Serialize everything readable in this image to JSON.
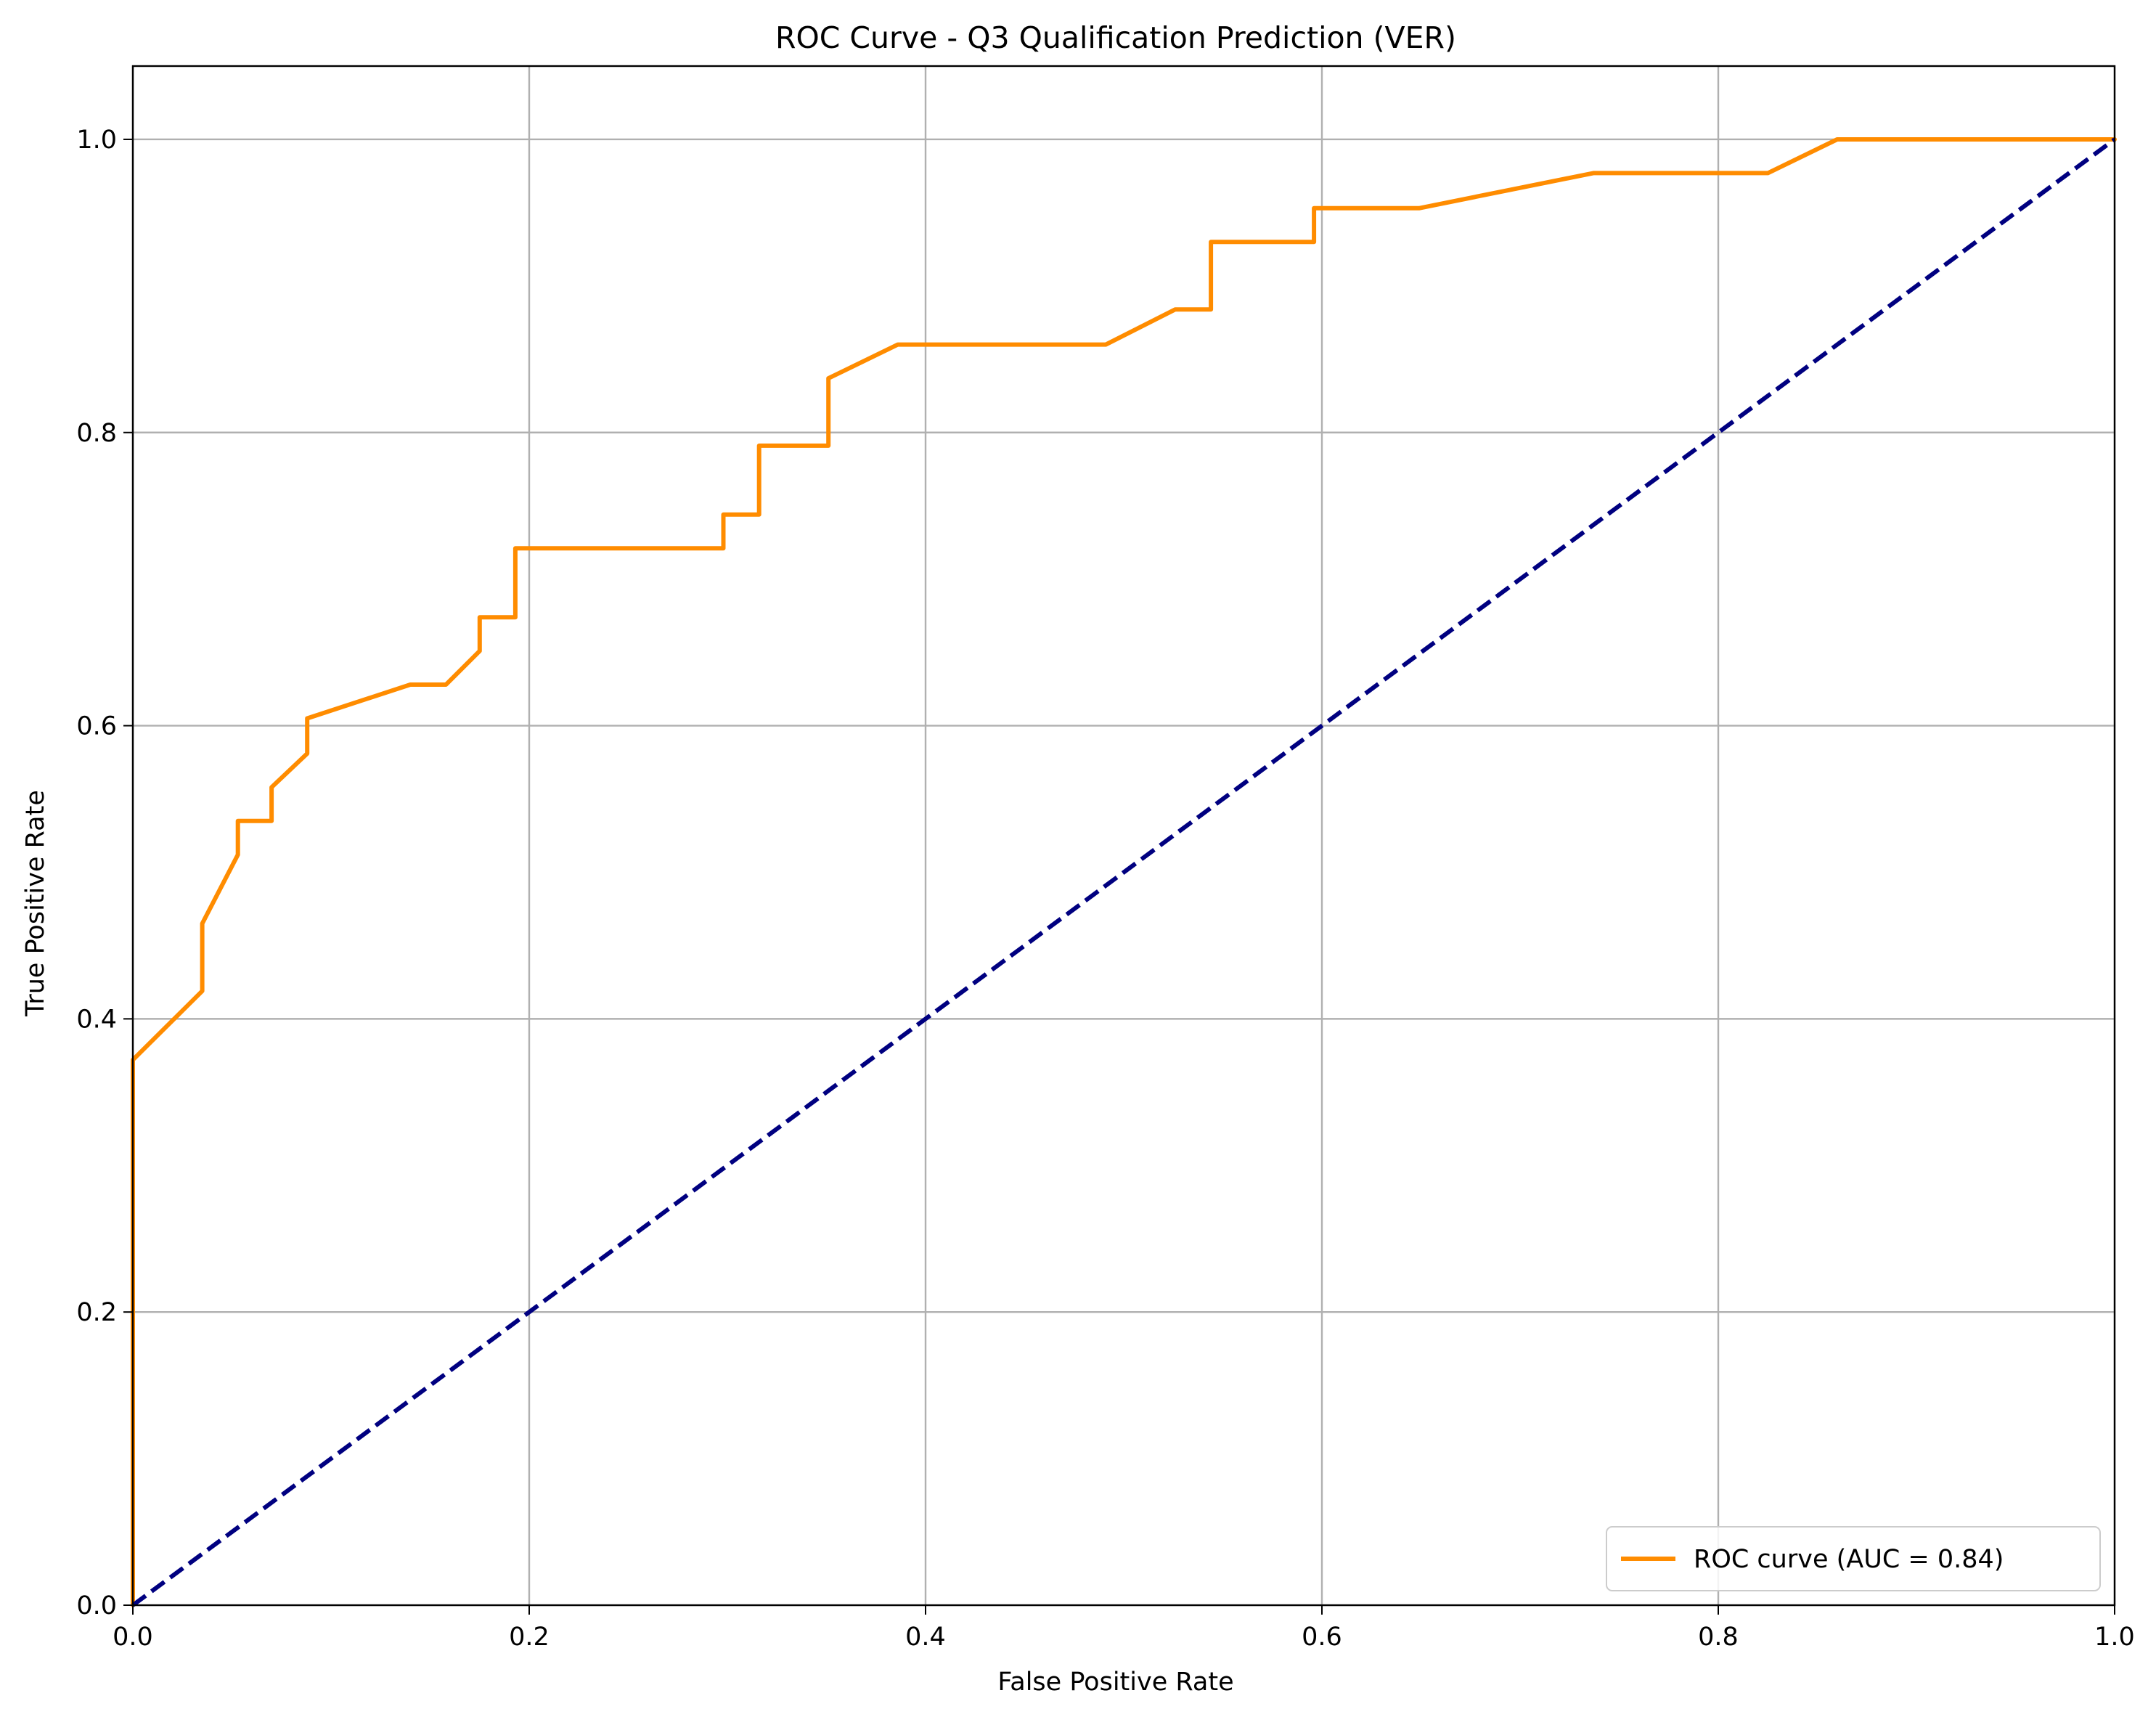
{
  "chart_data": {
    "type": "line",
    "title": "ROC Curve - Q3 Qualification Prediction (VER)",
    "xlabel": "False Positive Rate",
    "ylabel": "True Positive Rate",
    "xlim": [
      0.0,
      1.0
    ],
    "ylim": [
      0.0,
      1.05
    ],
    "x_ticks": [
      0.0,
      0.2,
      0.4,
      0.6,
      0.8,
      1.0
    ],
    "y_ticks": [
      0.0,
      0.2,
      0.4,
      0.6,
      0.8,
      1.0
    ],
    "x_tick_labels": [
      "0.0",
      "0.2",
      "0.4",
      "0.6",
      "0.8",
      "1.0"
    ],
    "y_tick_labels": [
      "0.0",
      "0.2",
      "0.4",
      "0.6",
      "0.8",
      "1.0"
    ],
    "grid": true,
    "legend_position": "lower-right",
    "series": [
      {
        "name": "ROC curve (AUC = 0.84)",
        "color": "#ff8c00",
        "style": "solid",
        "points": [
          [
            0.0,
            0.0
          ],
          [
            0.0,
            0.372
          ],
          [
            0.035,
            0.419
          ],
          [
            0.035,
            0.465
          ],
          [
            0.053,
            0.512
          ],
          [
            0.053,
            0.535
          ],
          [
            0.07,
            0.535
          ],
          [
            0.07,
            0.558
          ],
          [
            0.088,
            0.581
          ],
          [
            0.088,
            0.605
          ],
          [
            0.14,
            0.628
          ],
          [
            0.158,
            0.628
          ],
          [
            0.175,
            0.651
          ],
          [
            0.175,
            0.674
          ],
          [
            0.193,
            0.674
          ],
          [
            0.193,
            0.721
          ],
          [
            0.298,
            0.721
          ],
          [
            0.298,
            0.744
          ],
          [
            0.316,
            0.744
          ],
          [
            0.316,
            0.791
          ],
          [
            0.351,
            0.791
          ],
          [
            0.351,
            0.837
          ],
          [
            0.386,
            0.86
          ],
          [
            0.491,
            0.86
          ],
          [
            0.526,
            0.884
          ],
          [
            0.544,
            0.884
          ],
          [
            0.544,
            0.93
          ],
          [
            0.596,
            0.93
          ],
          [
            0.596,
            0.953
          ],
          [
            0.649,
            0.953
          ],
          [
            0.737,
            0.977
          ],
          [
            0.825,
            0.977
          ],
          [
            0.86,
            1.0
          ],
          [
            1.0,
            1.0
          ]
        ]
      },
      {
        "name": "",
        "color": "#000080",
        "style": "dashed",
        "points": [
          [
            0.0,
            0.0
          ],
          [
            1.0,
            1.0
          ]
        ]
      }
    ]
  }
}
